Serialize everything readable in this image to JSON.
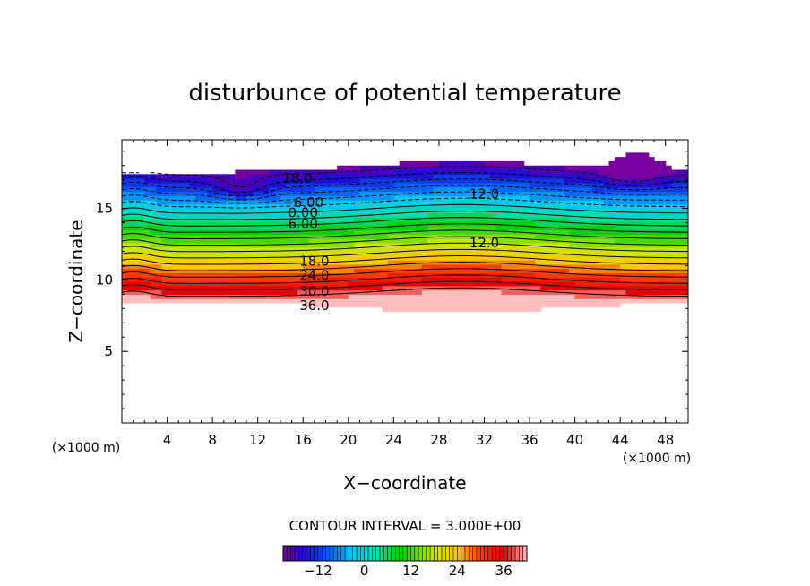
{
  "chart_data": {
    "type": "contour",
    "title": "disturbunce of potential temperature",
    "xlabel": "X−coordinate",
    "ylabel": "Z−coordinate",
    "x_unit": "(×1000 m)",
    "y_unit": "(×1000 m)",
    "xlim": [
      0,
      50
    ],
    "ylim": [
      0,
      19.8
    ],
    "x_ticks": [
      4,
      8,
      12,
      16,
      20,
      24,
      28,
      32,
      36,
      40,
      44,
      48
    ],
    "y_ticks": [
      5,
      10,
      15
    ],
    "contour_interval_text": "CONTOUR INTERVAL = 3.000E+00",
    "contour_interval": 3.0,
    "value_range": [
      -21,
      42
    ],
    "contour_labels": [
      {
        "text": "18.0",
        "x": 15.5,
        "z": 17.1
      },
      {
        "text": "12.0",
        "x": 32,
        "z": 16.0
      },
      {
        "text": "−6.00",
        "x": 16,
        "z": 15.4
      },
      {
        "text": "0.00",
        "x": 16,
        "z": 14.7
      },
      {
        "text": "6.00",
        "x": 16,
        "z": 13.9
      },
      {
        "text": "12.0",
        "x": 32,
        "z": 12.6
      },
      {
        "text": "18.0",
        "x": 17,
        "z": 11.3
      },
      {
        "text": "24.0",
        "x": 17,
        "z": 10.3
      },
      {
        "text": "30.0",
        "x": 17,
        "z": 9.2
      },
      {
        "text": "36.0",
        "x": 17,
        "z": 8.2
      }
    ],
    "colorbar": {
      "tick_labels": [
        "−12",
        "0",
        "12",
        "24",
        "36"
      ],
      "tick_values": [
        -12,
        0,
        12,
        24,
        36
      ],
      "min": -21,
      "max": 42
    }
  }
}
